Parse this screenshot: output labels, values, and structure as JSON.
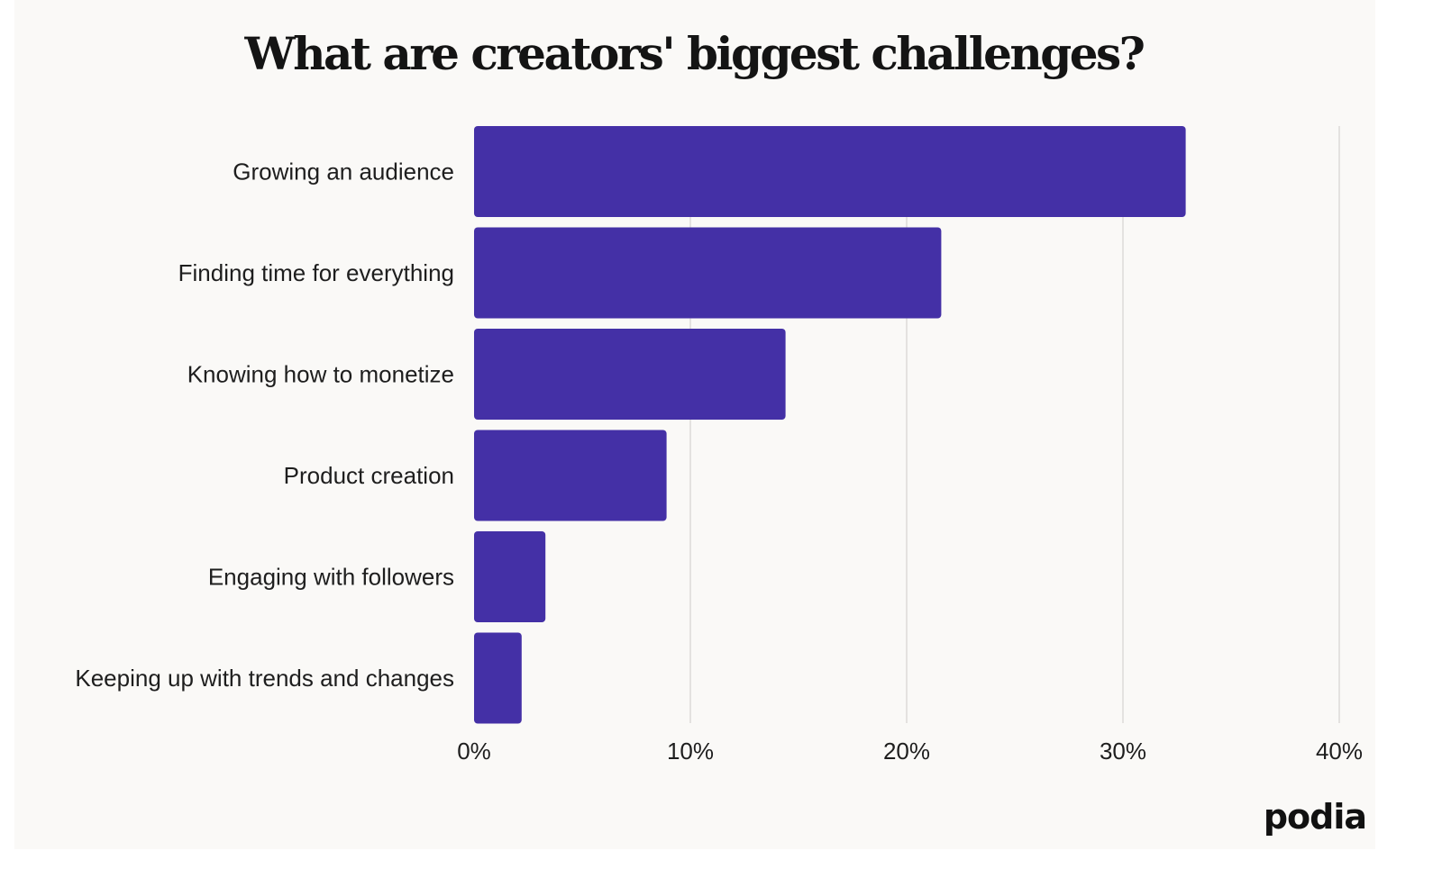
{
  "chart_data": {
    "type": "bar",
    "orientation": "horizontal",
    "title": "What are creators' biggest challenges?",
    "categories": [
      "Growing an audience",
      "Finding time for everything",
      "Knowing how to monetize",
      "Product creation",
      "Engaging with followers",
      "Keeping up with trends and changes"
    ],
    "values": [
      32.9,
      21.6,
      14.4,
      8.9,
      3.3,
      2.2
    ],
    "xlim": [
      0,
      40
    ],
    "xticks": [
      "0%",
      "10%",
      "20%",
      "30%",
      "40%"
    ],
    "grid": true,
    "bar_color": "#4430a6",
    "background": "#faf9f7"
  },
  "logo": "podia"
}
